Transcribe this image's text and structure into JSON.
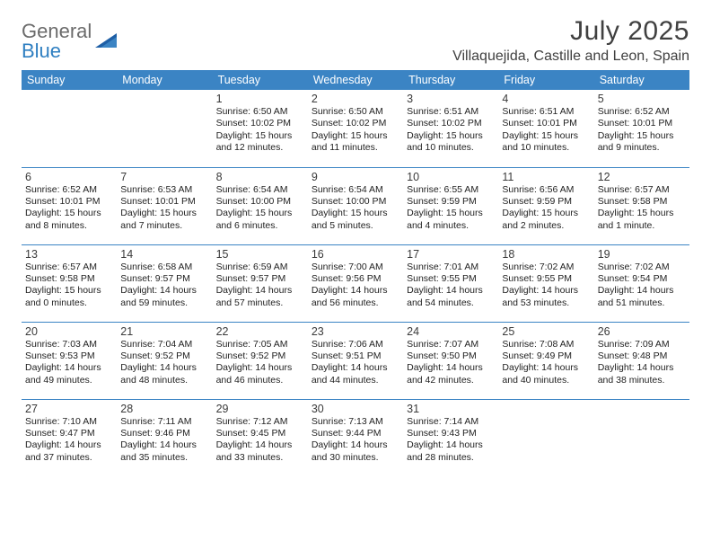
{
  "brand": {
    "word1": "General",
    "word2": "Blue"
  },
  "title": "July 2025",
  "location": "Villaquejida, Castille and Leon, Spain",
  "colors": {
    "accent": "#3b84c4",
    "header_text": "#ffffff",
    "text": "#222222",
    "title_text": "#404040",
    "logo_gray": "#6b6b6b",
    "logo_blue": "#2f7fc1",
    "background": "#ffffff"
  },
  "dayHeaders": [
    "Sunday",
    "Monday",
    "Tuesday",
    "Wednesday",
    "Thursday",
    "Friday",
    "Saturday"
  ],
  "weeks": [
    [
      null,
      null,
      {
        "n": "1",
        "sr": "6:50 AM",
        "ss": "10:02 PM",
        "dl": "15 hours and 12 minutes."
      },
      {
        "n": "2",
        "sr": "6:50 AM",
        "ss": "10:02 PM",
        "dl": "15 hours and 11 minutes."
      },
      {
        "n": "3",
        "sr": "6:51 AM",
        "ss": "10:02 PM",
        "dl": "15 hours and 10 minutes."
      },
      {
        "n": "4",
        "sr": "6:51 AM",
        "ss": "10:01 PM",
        "dl": "15 hours and 10 minutes."
      },
      {
        "n": "5",
        "sr": "6:52 AM",
        "ss": "10:01 PM",
        "dl": "15 hours and 9 minutes."
      }
    ],
    [
      {
        "n": "6",
        "sr": "6:52 AM",
        "ss": "10:01 PM",
        "dl": "15 hours and 8 minutes."
      },
      {
        "n": "7",
        "sr": "6:53 AM",
        "ss": "10:01 PM",
        "dl": "15 hours and 7 minutes."
      },
      {
        "n": "8",
        "sr": "6:54 AM",
        "ss": "10:00 PM",
        "dl": "15 hours and 6 minutes."
      },
      {
        "n": "9",
        "sr": "6:54 AM",
        "ss": "10:00 PM",
        "dl": "15 hours and 5 minutes."
      },
      {
        "n": "10",
        "sr": "6:55 AM",
        "ss": "9:59 PM",
        "dl": "15 hours and 4 minutes."
      },
      {
        "n": "11",
        "sr": "6:56 AM",
        "ss": "9:59 PM",
        "dl": "15 hours and 2 minutes."
      },
      {
        "n": "12",
        "sr": "6:57 AM",
        "ss": "9:58 PM",
        "dl": "15 hours and 1 minute."
      }
    ],
    [
      {
        "n": "13",
        "sr": "6:57 AM",
        "ss": "9:58 PM",
        "dl": "15 hours and 0 minutes."
      },
      {
        "n": "14",
        "sr": "6:58 AM",
        "ss": "9:57 PM",
        "dl": "14 hours and 59 minutes."
      },
      {
        "n": "15",
        "sr": "6:59 AM",
        "ss": "9:57 PM",
        "dl": "14 hours and 57 minutes."
      },
      {
        "n": "16",
        "sr": "7:00 AM",
        "ss": "9:56 PM",
        "dl": "14 hours and 56 minutes."
      },
      {
        "n": "17",
        "sr": "7:01 AM",
        "ss": "9:55 PM",
        "dl": "14 hours and 54 minutes."
      },
      {
        "n": "18",
        "sr": "7:02 AM",
        "ss": "9:55 PM",
        "dl": "14 hours and 53 minutes."
      },
      {
        "n": "19",
        "sr": "7:02 AM",
        "ss": "9:54 PM",
        "dl": "14 hours and 51 minutes."
      }
    ],
    [
      {
        "n": "20",
        "sr": "7:03 AM",
        "ss": "9:53 PM",
        "dl": "14 hours and 49 minutes."
      },
      {
        "n": "21",
        "sr": "7:04 AM",
        "ss": "9:52 PM",
        "dl": "14 hours and 48 minutes."
      },
      {
        "n": "22",
        "sr": "7:05 AM",
        "ss": "9:52 PM",
        "dl": "14 hours and 46 minutes."
      },
      {
        "n": "23",
        "sr": "7:06 AM",
        "ss": "9:51 PM",
        "dl": "14 hours and 44 minutes."
      },
      {
        "n": "24",
        "sr": "7:07 AM",
        "ss": "9:50 PM",
        "dl": "14 hours and 42 minutes."
      },
      {
        "n": "25",
        "sr": "7:08 AM",
        "ss": "9:49 PM",
        "dl": "14 hours and 40 minutes."
      },
      {
        "n": "26",
        "sr": "7:09 AM",
        "ss": "9:48 PM",
        "dl": "14 hours and 38 minutes."
      }
    ],
    [
      {
        "n": "27",
        "sr": "7:10 AM",
        "ss": "9:47 PM",
        "dl": "14 hours and 37 minutes."
      },
      {
        "n": "28",
        "sr": "7:11 AM",
        "ss": "9:46 PM",
        "dl": "14 hours and 35 minutes."
      },
      {
        "n": "29",
        "sr": "7:12 AM",
        "ss": "9:45 PM",
        "dl": "14 hours and 33 minutes."
      },
      {
        "n": "30",
        "sr": "7:13 AM",
        "ss": "9:44 PM",
        "dl": "14 hours and 30 minutes."
      },
      {
        "n": "31",
        "sr": "7:14 AM",
        "ss": "9:43 PM",
        "dl": "14 hours and 28 minutes."
      },
      null,
      null
    ]
  ],
  "labels": {
    "sunrise": "Sunrise:",
    "sunset": "Sunset:",
    "daylight": "Daylight:"
  }
}
